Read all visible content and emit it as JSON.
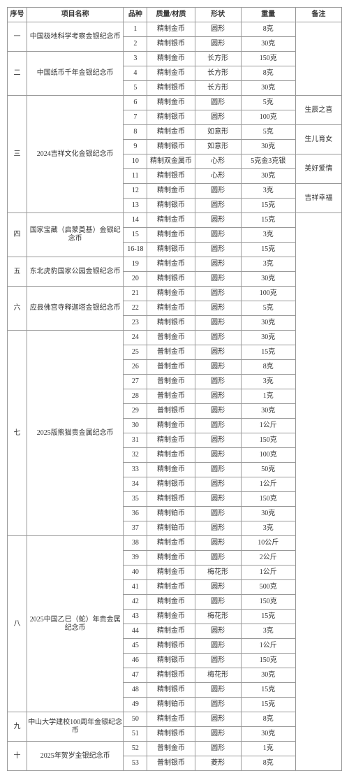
{
  "colors": {
    "border": "#999999",
    "text": "#333333",
    "background": "#ffffff"
  },
  "headers": {
    "seq": "序号",
    "name": "项目名称",
    "kind": "品种",
    "material": "质量/材质",
    "shape": "形状",
    "weight": "重量",
    "note": "备注"
  },
  "groups": [
    {
      "seq": "一",
      "name": "中国极地科学考察金银纪念币",
      "rows": [
        {
          "kind": "1",
          "material": "精制金币",
          "shape": "圆形",
          "weight": "8克"
        },
        {
          "kind": "2",
          "material": "精制银币",
          "shape": "圆形",
          "weight": "30克"
        }
      ],
      "notes": []
    },
    {
      "seq": "二",
      "name": "中国纸币千年金银纪念币",
      "rows": [
        {
          "kind": "3",
          "material": "精制金币",
          "shape": "长方形",
          "weight": "150克"
        },
        {
          "kind": "4",
          "material": "精制金币",
          "shape": "长方形",
          "weight": "8克"
        },
        {
          "kind": "5",
          "material": "精制银币",
          "shape": "长方形",
          "weight": "30克"
        }
      ],
      "notes": []
    },
    {
      "seq": "三",
      "name": "2024吉祥文化金银纪念币",
      "rows": [
        {
          "kind": "6",
          "material": "精制金币",
          "shape": "圆形",
          "weight": "5克"
        },
        {
          "kind": "7",
          "material": "精制银币",
          "shape": "圆形",
          "weight": "100克"
        },
        {
          "kind": "8",
          "material": "精制金币",
          "shape": "如意形",
          "weight": "5克"
        },
        {
          "kind": "9",
          "material": "精制银币",
          "shape": "如意形",
          "weight": "30克"
        },
        {
          "kind": "10",
          "material": "精制双金属币",
          "shape": "心形",
          "weight": "5克金3克银"
        },
        {
          "kind": "11",
          "material": "精制银币",
          "shape": "心形",
          "weight": "30克"
        },
        {
          "kind": "12",
          "material": "精制金币",
          "shape": "圆形",
          "weight": "3克"
        },
        {
          "kind": "13",
          "material": "精制银币",
          "shape": "圆形",
          "weight": "15克"
        }
      ],
      "notes": [
        {
          "text": "生辰之喜",
          "span": 2
        },
        {
          "text": "生儿育女",
          "span": 2
        },
        {
          "text": "美好爱情",
          "span": 2
        },
        {
          "text": "吉祥幸福",
          "span": 2
        }
      ]
    },
    {
      "seq": "四",
      "name": "国家宝藏（启蒙奠基）金银纪念币",
      "rows": [
        {
          "kind": "14",
          "material": "精制金币",
          "shape": "圆形",
          "weight": "15克"
        },
        {
          "kind": "15",
          "material": "精制金币",
          "shape": "圆形",
          "weight": "3克"
        },
        {
          "kind": "16-18",
          "material": "精制银币",
          "shape": "圆形",
          "weight": "15克"
        }
      ],
      "notes": []
    },
    {
      "seq": "五",
      "name": "东北虎豹国家公园金银纪念币",
      "rows": [
        {
          "kind": "19",
          "material": "精制金币",
          "shape": "圆形",
          "weight": "3克"
        },
        {
          "kind": "20",
          "material": "精制银币",
          "shape": "圆形",
          "weight": "30克"
        }
      ],
      "notes": []
    },
    {
      "seq": "六",
      "name": "应县佛宫寺释迦塔金银纪念币",
      "rows": [
        {
          "kind": "21",
          "material": "精制金币",
          "shape": "圆形",
          "weight": "100克"
        },
        {
          "kind": "22",
          "material": "精制金币",
          "shape": "圆形",
          "weight": "5克"
        },
        {
          "kind": "23",
          "material": "精制银币",
          "shape": "圆形",
          "weight": "30克"
        }
      ],
      "notes": []
    },
    {
      "seq": "七",
      "name": "2025版熊猫贵金属纪念币",
      "rows": [
        {
          "kind": "24",
          "material": "普制金币",
          "shape": "圆形",
          "weight": "30克"
        },
        {
          "kind": "25",
          "material": "普制金币",
          "shape": "圆形",
          "weight": "15克"
        },
        {
          "kind": "26",
          "material": "普制金币",
          "shape": "圆形",
          "weight": "8克"
        },
        {
          "kind": "27",
          "material": "普制金币",
          "shape": "圆形",
          "weight": "3克"
        },
        {
          "kind": "28",
          "material": "普制金币",
          "shape": "圆形",
          "weight": "1克"
        },
        {
          "kind": "29",
          "material": "普制银币",
          "shape": "圆形",
          "weight": "30克"
        },
        {
          "kind": "30",
          "material": "精制金币",
          "shape": "圆形",
          "weight": "1公斤"
        },
        {
          "kind": "31",
          "material": "精制金币",
          "shape": "圆形",
          "weight": "150克"
        },
        {
          "kind": "32",
          "material": "精制金币",
          "shape": "圆形",
          "weight": "100克"
        },
        {
          "kind": "33",
          "material": "精制金币",
          "shape": "圆形",
          "weight": "50克"
        },
        {
          "kind": "34",
          "material": "精制银币",
          "shape": "圆形",
          "weight": "1公斤"
        },
        {
          "kind": "35",
          "material": "精制银币",
          "shape": "圆形",
          "weight": "150克"
        },
        {
          "kind": "36",
          "material": "精制铂币",
          "shape": "圆形",
          "weight": "30克"
        },
        {
          "kind": "37",
          "material": "精制铂币",
          "shape": "圆形",
          "weight": "3克"
        }
      ],
      "notes": []
    },
    {
      "seq": "八",
      "name": "2025中国乙巳（蛇）年贵金属纪念币",
      "rows": [
        {
          "kind": "38",
          "material": "精制金币",
          "shape": "圆形",
          "weight": "10公斤"
        },
        {
          "kind": "39",
          "material": "精制金币",
          "shape": "圆形",
          "weight": "2公斤"
        },
        {
          "kind": "40",
          "material": "精制金币",
          "shape": "梅花形",
          "weight": "1公斤"
        },
        {
          "kind": "41",
          "material": "精制金币",
          "shape": "圆形",
          "weight": "500克"
        },
        {
          "kind": "42",
          "material": "精制金币",
          "shape": "圆形",
          "weight": "150克"
        },
        {
          "kind": "43",
          "material": "精制金币",
          "shape": "梅花形",
          "weight": "15克"
        },
        {
          "kind": "44",
          "material": "精制金币",
          "shape": "圆形",
          "weight": "3克"
        },
        {
          "kind": "45",
          "material": "精制银币",
          "shape": "圆形",
          "weight": "1公斤"
        },
        {
          "kind": "46",
          "material": "精制银币",
          "shape": "圆形",
          "weight": "150克"
        },
        {
          "kind": "47",
          "material": "精制银币",
          "shape": "梅花形",
          "weight": "30克"
        },
        {
          "kind": "48",
          "material": "精制银币",
          "shape": "圆形",
          "weight": "15克"
        },
        {
          "kind": "49",
          "material": "精制铂币",
          "shape": "圆形",
          "weight": "15克"
        }
      ],
      "notes": []
    },
    {
      "seq": "九",
      "name": "中山大学建校100周年金银纪念币",
      "rows": [
        {
          "kind": "50",
          "material": "精制金币",
          "shape": "圆形",
          "weight": "8克"
        },
        {
          "kind": "51",
          "material": "精制银币",
          "shape": "圆形",
          "weight": "30克"
        }
      ],
      "notes": []
    },
    {
      "seq": "十",
      "name": "2025年贺岁金银纪念币",
      "rows": [
        {
          "kind": "52",
          "material": "普制金币",
          "shape": "圆形",
          "weight": "1克"
        },
        {
          "kind": "53",
          "material": "普制银币",
          "shape": "菱形",
          "weight": "8克"
        }
      ],
      "notes": []
    }
  ]
}
